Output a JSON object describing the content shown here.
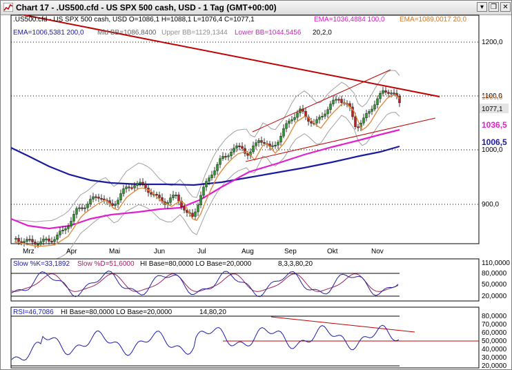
{
  "window": {
    "title": "Chart 17 - .US500.cfd - US SPX 500 cash, USD - 1 Tag (GMT+00:00)",
    "buttons": {
      "minimize": "▾",
      "restore": "❐",
      "close": "✕"
    }
  },
  "main_panel": {
    "legend_line1": {
      "ohlc": ".US500.cfd - US SPX 500 cash, USD O=1086,1 H=1088,1 L=1076,4 C=1077,1",
      "ema1": "EMA=1036,4884  100,0",
      "ema2": "EMA=1089,0017  20,0"
    },
    "legend_line2": {
      "ema3": "EMA=1006,5381  200,0",
      "mid_bb": "Mid BB=1086,8400",
      "upper_bb": "Upper BB=1129,1344",
      "lower_bb": "Lower BB=1044,5456",
      "bb_params": "20,2,0"
    },
    "y_ticks": [
      "1200,0",
      "1100,0",
      "1000,0",
      "900,0"
    ],
    "price_labels": {
      "last": "1077,1",
      "ema100": "1036,5",
      "ema200": "1006,5",
      "ema20": "1089,0"
    },
    "x_ticks": [
      "Mrz",
      "Apr",
      "Mai",
      "Jun",
      "Jul",
      "Aug",
      "Sep",
      "Okt",
      "Nov"
    ]
  },
  "stoch_panel": {
    "legend": {
      "k": "Slow %K=33,1892",
      "d": "Slow %D=51,6000",
      "bases": "HI Base=80,0000  LO Base=20,0000",
      "params": "8,3,3,80,20"
    },
    "y_ticks": [
      "110,0000",
      "80,0000",
      "50,0000",
      "20,0000"
    ]
  },
  "rsi_panel": {
    "legend": {
      "rsi": "RSI=46,7086",
      "bases": "HI Base=80,0000  LO Base=20,0000",
      "params": "14,80,20"
    },
    "y_ticks": [
      "80,0000",
      "70,0000",
      "60,0000",
      "50,0000",
      "40,0000",
      "30,0000",
      "20,0000"
    ]
  },
  "colors": {
    "candle_up": "#2e9a2e",
    "candle_down": "#c02020",
    "ema20": "#e08a40",
    "ema100": "#e020d0",
    "ema200": "#1a1aa0",
    "bollinger": "#a0a0a0",
    "trendline": "#c00000",
    "stoch_k": "#2020a0",
    "stoch_d": "#a02060",
    "rsi": "#1a1ab0"
  }
}
